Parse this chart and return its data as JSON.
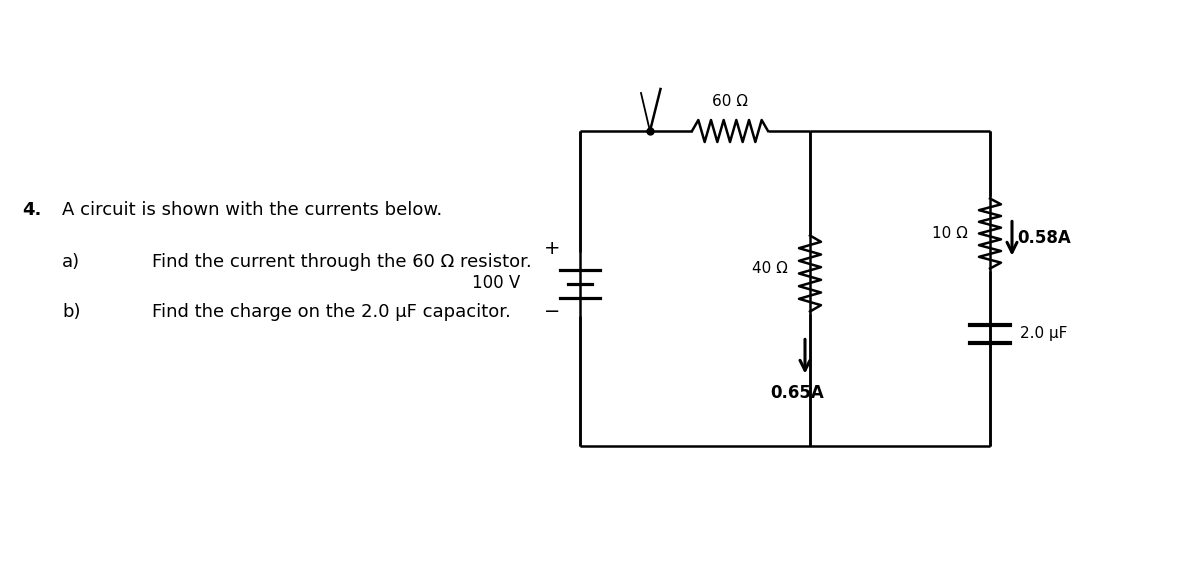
{
  "bg_color": "#ffffff",
  "text_color": "#000000",
  "line_color": "#000000",
  "question_number": "4.",
  "question_text": "A circuit is shown with the currents below.",
  "sub_a": "a)",
  "sub_a_text": "Find the current through the 60 Ω resistor.",
  "sub_b": "b)",
  "sub_b_text": "Find the charge on the 2.0 μF capacitor.",
  "label_60ohm": "60 Ω",
  "label_10ohm": "10 Ω",
  "label_40ohm": "40 Ω",
  "label_100v": "100 V",
  "label_cap": "2.0 μF",
  "label_current1": "0.65A",
  "label_current2": "0.58A",
  "plus_sign": "+",
  "minus_sign": "−",
  "lw": 1.8
}
